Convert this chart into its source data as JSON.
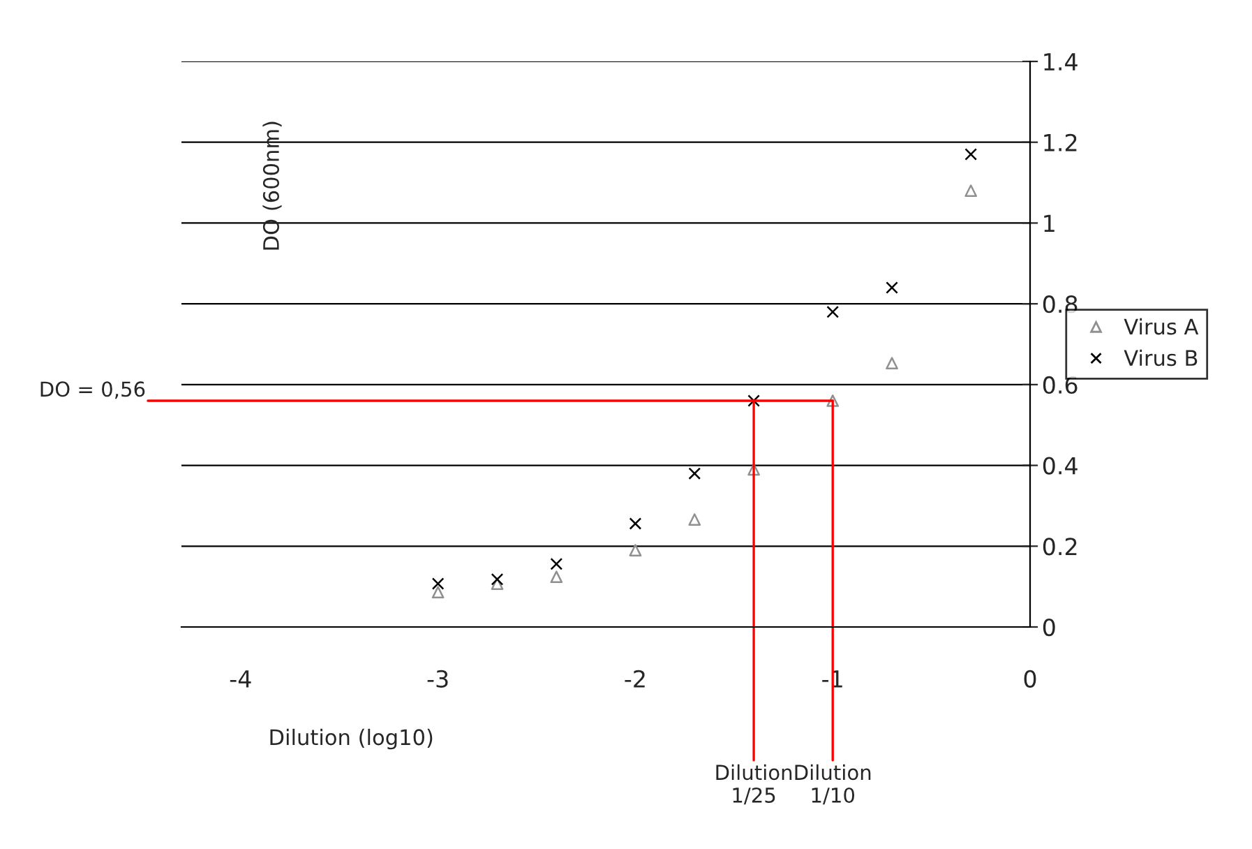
{
  "chart_data": {
    "type": "scatter",
    "xlabel": "Dilution (log10)",
    "ylabel": "DO (600nm)",
    "xlim": [
      -4.3,
      0
    ],
    "xticks": [
      -4,
      -3,
      -2,
      -1,
      0
    ],
    "ylim": [
      0,
      1.4
    ],
    "yticks": [
      0,
      0.2,
      0.4,
      0.6,
      0.8,
      1,
      1.2,
      1.4
    ],
    "grid": "y",
    "legend": "right",
    "x": [
      -3,
      -2.7,
      -2.4,
      -2,
      -1.7,
      -1.4,
      -1,
      -0.7,
      -0.3
    ],
    "series": [
      {
        "name": "Virus A",
        "color": "#909090",
        "marker": "triangle",
        "values": [
          0.086,
          0.107,
          0.124,
          0.19,
          0.266,
          0.39,
          0.56,
          0.653,
          1.08
        ]
      },
      {
        "name": "Virus B",
        "color": "#000000",
        "marker": "cross",
        "values": [
          0.107,
          0.118,
          0.156,
          0.256,
          0.38,
          0.56,
          0.78,
          0.84,
          1.17
        ]
      }
    ],
    "ref_lines": [
      {
        "axis": "y",
        "value": 0.56,
        "label": "DO = 0,56",
        "color": "#ff0000"
      },
      {
        "axis": "x",
        "value": -1.4,
        "label": "Dilution\n1/25",
        "color": "#ff0000"
      },
      {
        "axis": "x",
        "value": -1,
        "label": "Dilution\n1/10",
        "color": "#ff0000"
      }
    ]
  }
}
